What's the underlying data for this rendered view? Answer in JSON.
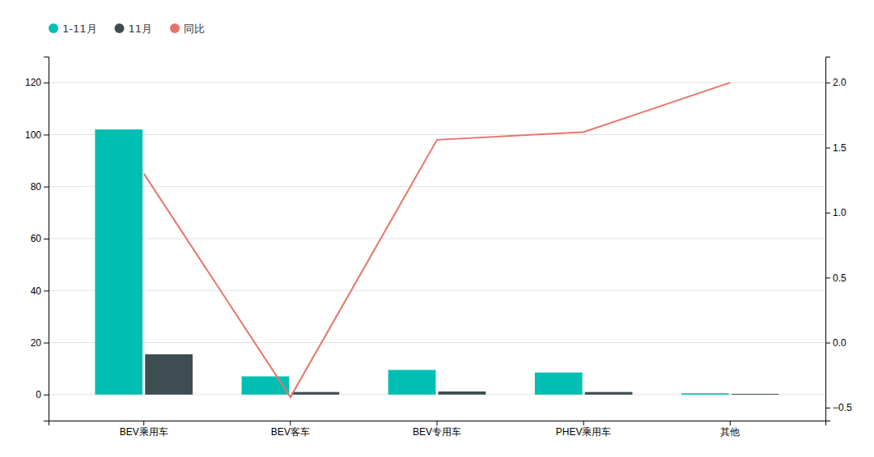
{
  "chart_data": {
    "type": "bar",
    "categories": [
      "BEV乘用车",
      "BEV客车",
      "BEV专用车",
      "PHEV乘用车",
      "其他"
    ],
    "series": [
      {
        "name": "1-11月",
        "color": "#00BFB2",
        "values": [
          102,
          7,
          9.5,
          8.5,
          0.5
        ]
      },
      {
        "name": "11月",
        "color": "#3D4D52",
        "values": [
          15.5,
          1.0,
          1.2,
          1.0,
          0.3
        ]
      },
      {
        "name": "同比",
        "type": "line",
        "axis": "y2",
        "color": "#E8736A",
        "values": [
          1.3,
          -0.42,
          1.56,
          1.62,
          2.0
        ]
      }
    ],
    "ylim": [
      -10,
      130
    ],
    "yticks": [
      0,
      20,
      40,
      60,
      80,
      100,
      120
    ],
    "y2lim": [
      -0.6,
      2.2
    ],
    "y2ticks": [
      {
        "value": -0.5,
        "label": "−0.5"
      },
      {
        "value": 0,
        "label": "0.0"
      },
      0.5,
      {
        "value": 1.0,
        "label": "1.0"
      },
      1.5,
      {
        "value": 2.0,
        "label": "2.0"
      }
    ],
    "grid": true,
    "legend": "upper left"
  }
}
